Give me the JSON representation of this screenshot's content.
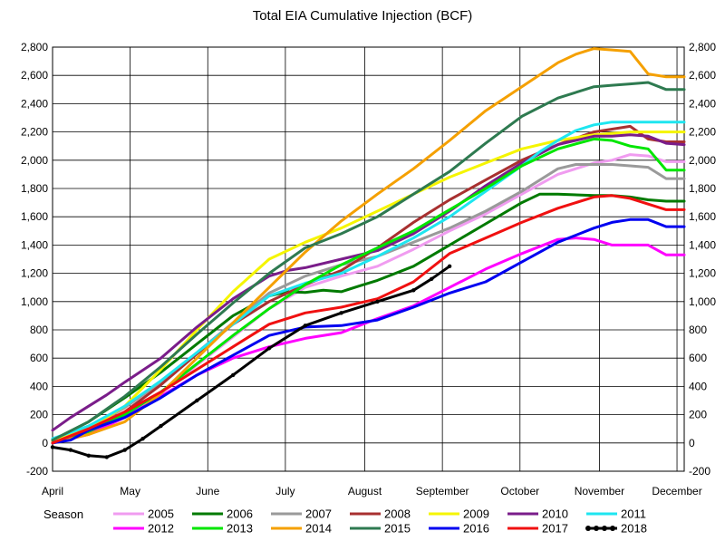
{
  "chart_data": {
    "type": "line",
    "title": "Total EIA Cumulative Injection (BCF)",
    "xlabel": "",
    "ylabel": "",
    "ylim": [
      -200,
      2800
    ],
    "yticks": [
      -200,
      0,
      200,
      400,
      600,
      800,
      1000,
      1200,
      1400,
      1600,
      1800,
      2000,
      2200,
      2400,
      2600,
      2800
    ],
    "ytick_labels": [
      "-200",
      "0",
      "200",
      "400",
      "600",
      "800",
      "1,000",
      "1,200",
      "1,400",
      "1,600",
      "1,800",
      "2,000",
      "2,200",
      "2,400",
      "2,600",
      "2,800"
    ],
    "x_unit": "weeks from start of April",
    "xlim": [
      0,
      35
    ],
    "month_labels": [
      "April",
      "May",
      "June",
      "July",
      "August",
      "September",
      "October",
      "November",
      "December"
    ],
    "month_positions": [
      0,
      4.3,
      8.6,
      12.9,
      17.3,
      21.6,
      25.9,
      30.3,
      34.6
    ],
    "grid": true,
    "legend_title": "Season",
    "legend_position": "bottom",
    "series": [
      {
        "name": "2005",
        "color": "#f09cf0",
        "x": [
          0,
          2,
          4,
          6,
          8,
          10,
          12,
          14,
          16,
          18,
          20,
          22,
          24,
          26,
          28,
          30,
          31,
          32,
          33,
          34,
          35
        ],
        "values": [
          0,
          80,
          200,
          350,
          550,
          750,
          950,
          1100,
          1180,
          1250,
          1370,
          1500,
          1620,
          1760,
          1900,
          1980,
          2000,
          2040,
          2030,
          1990,
          1990
        ]
      },
      {
        "name": "2006",
        "color": "#007a00",
        "x": [
          0,
          2,
          4,
          6,
          8,
          10,
          12,
          13,
          14,
          15,
          16,
          17,
          18,
          20,
          22,
          24,
          26,
          27,
          28,
          30,
          31,
          32,
          33,
          34,
          35
        ],
        "values": [
          20,
          150,
          320,
          500,
          700,
          900,
          1040,
          1070,
          1065,
          1080,
          1070,
          1110,
          1150,
          1250,
          1400,
          1550,
          1700,
          1760,
          1760,
          1750,
          1750,
          1740,
          1720,
          1710,
          1710
        ]
      },
      {
        "name": "2007",
        "color": "#9a9a9a",
        "x": [
          0,
          2,
          4,
          6,
          8,
          10,
          12,
          14,
          16,
          18,
          20,
          22,
          24,
          26,
          28,
          29,
          30,
          31,
          32,
          33,
          34,
          35
        ],
        "values": [
          0,
          100,
          250,
          430,
          640,
          850,
          1060,
          1180,
          1260,
          1320,
          1420,
          1520,
          1640,
          1780,
          1940,
          1970,
          1970,
          1970,
          1960,
          1950,
          1870,
          1870
        ]
      },
      {
        "name": "2008",
        "color": "#a83030",
        "x": [
          0,
          2,
          4,
          6,
          8,
          10,
          12,
          14,
          16,
          18,
          20,
          22,
          24,
          26,
          28,
          30,
          31,
          32,
          33,
          34,
          35
        ],
        "values": [
          10,
          90,
          220,
          410,
          630,
          840,
          1000,
          1120,
          1220,
          1380,
          1560,
          1720,
          1860,
          2000,
          2110,
          2200,
          2220,
          2240,
          2150,
          2130,
          2130
        ]
      },
      {
        "name": "2009",
        "color": "#f5f500",
        "x": [
          0,
          2,
          4,
          6,
          8,
          10,
          12,
          14,
          16,
          18,
          20,
          22,
          24,
          26,
          28,
          30,
          31,
          32,
          33,
          34,
          35
        ],
        "values": [
          10,
          100,
          260,
          520,
          800,
          1070,
          1300,
          1420,
          1520,
          1640,
          1760,
          1880,
          1980,
          2080,
          2140,
          2180,
          2190,
          2200,
          2200,
          2200,
          2200
        ]
      },
      {
        "name": "2010",
        "color": "#7a1d8a",
        "x": [
          0,
          1,
          2,
          3,
          4,
          6,
          8,
          10,
          12,
          13,
          14,
          16,
          18,
          20,
          22,
          24,
          26,
          28,
          30,
          31,
          32,
          33,
          34,
          35
        ],
        "values": [
          90,
          180,
          260,
          340,
          430,
          600,
          820,
          1020,
          1180,
          1220,
          1240,
          1300,
          1360,
          1480,
          1640,
          1820,
          1980,
          2110,
          2170,
          2170,
          2180,
          2170,
          2120,
          2110
        ]
      },
      {
        "name": "2011",
        "color": "#1ee6f0",
        "x": [
          0,
          2,
          4,
          6,
          8,
          10,
          12,
          14,
          16,
          18,
          20,
          22,
          24,
          26,
          27,
          28,
          29,
          30,
          31,
          32,
          33,
          34,
          35
        ],
        "values": [
          30,
          120,
          260,
          440,
          640,
          840,
          1040,
          1130,
          1200,
          1320,
          1450,
          1600,
          1780,
          1960,
          2060,
          2140,
          2210,
          2250,
          2270,
          2270,
          2270,
          2270,
          2270
        ]
      },
      {
        "name": "2012",
        "color": "#ff00ff",
        "x": [
          0,
          2,
          4,
          6,
          8,
          10,
          12,
          14,
          16,
          18,
          20,
          22,
          24,
          26,
          28,
          29,
          30,
          31,
          32,
          33,
          34,
          35
        ],
        "values": [
          0,
          60,
          180,
          330,
          480,
          600,
          680,
          740,
          780,
          880,
          970,
          1100,
          1230,
          1340,
          1440,
          1450,
          1440,
          1400,
          1400,
          1400,
          1330,
          1330
        ]
      },
      {
        "name": "2013",
        "color": "#00e600",
        "x": [
          0,
          2,
          4,
          6,
          8,
          10,
          12,
          14,
          16,
          18,
          20,
          22,
          24,
          26,
          28,
          30,
          31,
          32,
          33,
          34,
          35
        ],
        "values": [
          0,
          80,
          200,
          360,
          560,
          760,
          950,
          1120,
          1260,
          1380,
          1500,
          1650,
          1800,
          1960,
          2080,
          2150,
          2140,
          2100,
          2080,
          1930,
          1930
        ]
      },
      {
        "name": "2014",
        "color": "#f5a000",
        "x": [
          0,
          2,
          4,
          6,
          8,
          10,
          12,
          14,
          16,
          18,
          20,
          22,
          24,
          26,
          28,
          29,
          30,
          31,
          32,
          33,
          34,
          35
        ],
        "values": [
          0,
          60,
          150,
          350,
          600,
          850,
          1100,
          1350,
          1570,
          1760,
          1940,
          2140,
          2350,
          2520,
          2690,
          2750,
          2790,
          2780,
          2770,
          2610,
          2590,
          2590
        ]
      },
      {
        "name": "2015",
        "color": "#2e7a50",
        "x": [
          0,
          2,
          4,
          6,
          8,
          10,
          12,
          14,
          16,
          18,
          20,
          22,
          24,
          26,
          28,
          30,
          31,
          32,
          33,
          34,
          35
        ],
        "values": [
          20,
          150,
          330,
          540,
          770,
          990,
          1200,
          1380,
          1480,
          1600,
          1760,
          1920,
          2120,
          2310,
          2440,
          2520,
          2530,
          2540,
          2550,
          2500,
          2500
        ]
      },
      {
        "name": "2016",
        "color": "#0000f0",
        "x": [
          0,
          1,
          2,
          4,
          6,
          8,
          10,
          12,
          14,
          16,
          18,
          20,
          22,
          24,
          26,
          28,
          30,
          31,
          32,
          33,
          34,
          35
        ],
        "values": [
          0,
          20,
          90,
          180,
          320,
          480,
          620,
          760,
          820,
          830,
          870,
          960,
          1060,
          1140,
          1280,
          1420,
          1520,
          1560,
          1580,
          1580,
          1530,
          1530
        ]
      },
      {
        "name": "2017",
        "color": "#f01010",
        "x": [
          0,
          2,
          4,
          6,
          8,
          10,
          12,
          14,
          16,
          18,
          20,
          22,
          24,
          26,
          28,
          30,
          31,
          32,
          33,
          34,
          35
        ],
        "values": [
          0,
          100,
          220,
          360,
          520,
          680,
          840,
          920,
          960,
          1020,
          1140,
          1340,
          1450,
          1560,
          1660,
          1740,
          1750,
          1730,
          1690,
          1650,
          1650
        ]
      },
      {
        "name": "2018",
        "color": "#000000",
        "marker": "circle",
        "x": [
          0,
          1,
          2,
          3,
          4,
          5,
          6,
          8,
          10,
          12,
          14,
          16,
          18,
          20,
          21,
          22
        ],
        "values": [
          -30,
          -50,
          -90,
          -100,
          -50,
          30,
          120,
          300,
          480,
          670,
          830,
          920,
          1000,
          1080,
          1160,
          1250
        ]
      }
    ]
  }
}
